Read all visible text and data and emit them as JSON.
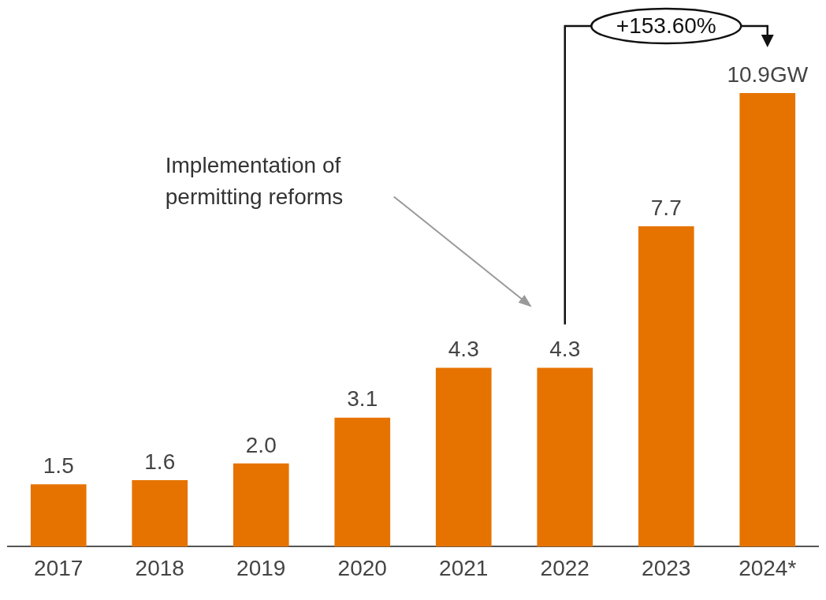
{
  "chart_data": {
    "type": "bar",
    "categories": [
      "2017",
      "2018",
      "2019",
      "2020",
      "2021",
      "2022",
      "2023",
      "2024*"
    ],
    "values": [
      1.5,
      1.6,
      2.0,
      3.1,
      4.3,
      4.3,
      7.7,
      10.9
    ],
    "color": "#e67300",
    "value_labels": [
      "1.5",
      "1.6",
      "2.0",
      "3.1",
      "4.3",
      "4.3",
      "7.7",
      "10.9GW"
    ],
    "annotations": [
      "Implementation of permitting reforms",
      "+153.60%"
    ],
    "grid": false,
    "legend": false
  }
}
